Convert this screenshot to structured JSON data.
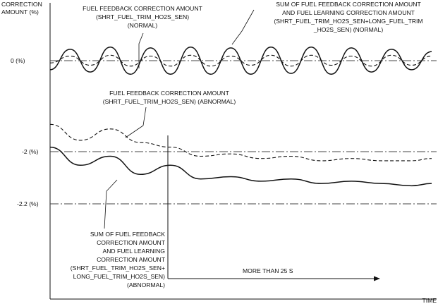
{
  "chart_data": {
    "type": "line",
    "ylabel": [
      "CORRECTION",
      "AMOUNT (%)"
    ],
    "xlabel": "TIME",
    "reference_lines": [
      {
        "label": "0 (%)",
        "value": 0
      },
      {
        "label": "-2 (%)",
        "value": -2
      },
      {
        "label": "-2.2 (%)",
        "value": -2.2
      }
    ],
    "annotations": {
      "feedback_normal": [
        "FUEL FEEDBACK CORRECTION AMOUNT",
        "(SHRT_FUEL_TRIM_HO2S_SEN)",
        "(NORMAL)"
      ],
      "sum_normal": [
        "SUM OF FUEL FEEDBACK CORRECTION AMOUNT",
        "AND FUEL LEARNING CORRECTION AMOUNT",
        "(SHRT_FUEL_TRIM_HO2S_SEN+LONG_FUEL_TRIM",
        "_HO2S_SEN) (NORMAL)"
      ],
      "feedback_abnormal": [
        "FUEL FEEDBACK CORRECTION AMOUNT",
        "(SHRT_FUEL_TRIM_HO2S_SEN) (ABNORMAL)"
      ],
      "sum_abnormal": [
        "SUM OF FUEL FEEDBACK",
        "CORRECTION AMOUNT",
        "AND FUEL LEARNING",
        "CORRECTION AMOUNT",
        "(SHRT_FUEL_TRIM_HO2S_SEN+",
        "LONG_FUEL_TRIM_HO2S_SEN)",
        "(ABNORMAL)"
      ],
      "duration": "MORE THAN 25 S"
    },
    "series": [
      {
        "style": "dashed",
        "points": [
          [
            0,
            -0.05
          ],
          [
            0.4,
            0.1
          ],
          [
            0.8,
            -0.1
          ],
          [
            1.2,
            0.12
          ],
          [
            1.6,
            -0.12
          ],
          [
            2,
            0.1
          ],
          [
            2.4,
            -0.12
          ],
          [
            2.8,
            0.12
          ],
          [
            3.2,
            -0.12
          ],
          [
            3.6,
            0.1
          ],
          [
            4,
            -0.1
          ],
          [
            4.4,
            0.12
          ],
          [
            4.8,
            -0.12
          ],
          [
            5.2,
            0.12
          ],
          [
            5.6,
            -0.1
          ],
          [
            6,
            0.1
          ],
          [
            6.4,
            -0.12
          ],
          [
            6.8,
            0.12
          ],
          [
            7.2,
            -0.1
          ],
          [
            7.6,
            0.1
          ]
        ]
      },
      {
        "style": "solid",
        "points": [
          [
            0,
            -0.2
          ],
          [
            0.4,
            0.25
          ],
          [
            0.8,
            -0.25
          ],
          [
            1.2,
            0.3
          ],
          [
            1.6,
            -0.3
          ],
          [
            2,
            0.28
          ],
          [
            2.4,
            -0.3
          ],
          [
            2.8,
            0.3
          ],
          [
            3.2,
            -0.3
          ],
          [
            3.6,
            0.28
          ],
          [
            4,
            -0.3
          ],
          [
            4.4,
            0.3
          ],
          [
            4.8,
            -0.28
          ],
          [
            5.2,
            0.3
          ],
          [
            5.6,
            -0.3
          ],
          [
            6,
            0.28
          ],
          [
            6.4,
            -0.25
          ],
          [
            6.8,
            0.25
          ],
          [
            7.2,
            -0.2
          ],
          [
            7.6,
            0.2
          ]
        ]
      },
      {
        "style": "dashed",
        "points": [
          [
            0,
            -1.4
          ],
          [
            0.6,
            -1.75
          ],
          [
            1.2,
            -1.5
          ],
          [
            1.8,
            -1.8
          ],
          [
            2.4,
            -1.9
          ],
          [
            3,
            -2.1
          ],
          [
            3.6,
            -2.05
          ],
          [
            4.2,
            -2.15
          ],
          [
            4.8,
            -2.1
          ],
          [
            5.4,
            -2.2
          ],
          [
            6,
            -2.15
          ],
          [
            6.6,
            -2.2
          ],
          [
            7.2,
            -2.2
          ],
          [
            7.6,
            -2.15
          ]
        ]
      },
      {
        "style": "solid",
        "points": [
          [
            0,
            -1.9
          ],
          [
            0.6,
            -2.3
          ],
          [
            1.2,
            -2.1
          ],
          [
            1.8,
            -2.5
          ],
          [
            2.4,
            -2.3
          ],
          [
            3,
            -2.6
          ],
          [
            3.6,
            -2.55
          ],
          [
            4.2,
            -2.65
          ],
          [
            4.8,
            -2.6
          ],
          [
            5.4,
            -2.7
          ],
          [
            6,
            -2.65
          ],
          [
            6.6,
            -2.7
          ],
          [
            7.2,
            -2.75
          ],
          [
            7.6,
            -2.7
          ]
        ]
      }
    ]
  }
}
